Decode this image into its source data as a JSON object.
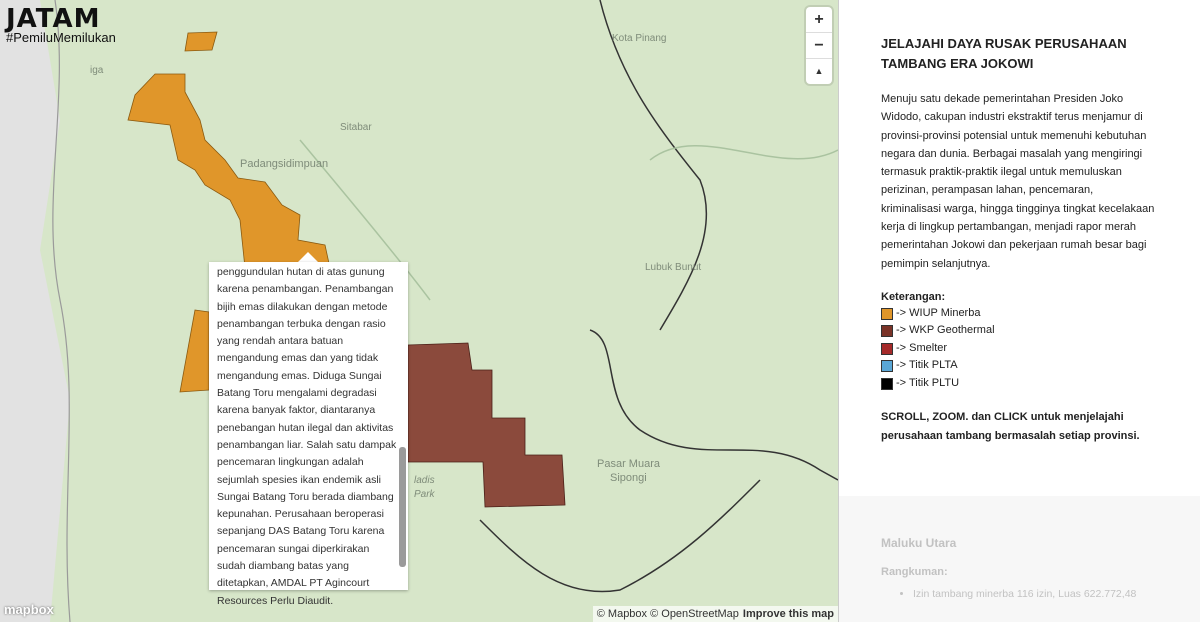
{
  "logo": {
    "title": "JATAM",
    "tagline": "#PemiluMemilukan"
  },
  "map": {
    "places": [
      "Kota Pinang",
      "Sitabar",
      "Padangsidimpuan",
      "Lubuk Bunut",
      "Pasar Muara",
      "Sipongi",
      "ladis",
      "Park",
      "iga"
    ],
    "controls": {
      "zoom_in": "+",
      "zoom_out": "−",
      "reset": "▲"
    },
    "popup": {
      "lines": [
        "penggundulan hutan di atas gunung",
        "karena penambangan. Penambangan",
        "bijih emas dilakukan dengan metode",
        "penambangan terbuka dengan rasio",
        "yang rendah antara batuan",
        "mengandung emas dan yang tidak",
        "mengandung emas. Diduga Sungai",
        "Batang Toru mengalami degradasi",
        "karena banyak faktor, diantaranya",
        "penebangan hutan ilegal dan aktivitas",
        "penambangan liar. Salah satu dampak",
        "pencemaran lingkungan adalah",
        "sejumlah spesies ikan endemik asli",
        "Sungai Batang Toru berada diambang",
        "kepunahan. Perusahaan beroperasi",
        "sepanjang DAS Batang Toru karena",
        "pencemaran sungai diperkirakan",
        "sudah diambang batas yang",
        "ditetapkan, AMDAL PT Agincourt",
        "Resources Perlu Diaudit."
      ]
    },
    "attribution": {
      "text": "© Mapbox © OpenStreetMap",
      "link": "Improve this map",
      "brand": "mapbox"
    }
  },
  "sidebar": {
    "title": "JELAJAHI DAYA RUSAK PERUSAHAAN TAMBANG ERA JOKOWI",
    "intro": "Menuju satu dekade pemerintahan Presiden Joko Widodo, cakupan industri ekstraktif terus menjamur di provinsi-provinsi potensial untuk memenuhi kebutuhan negara dan dunia. Berbagai masalah yang mengiringi termasuk praktik-praktik ilegal untuk memuluskan perizinan, perampasan lahan, pencemaran, kriminalisasi warga, hingga tingginya tingkat kecelakaan kerja di lingkup pertambangan, menjadi rapor merah pemerintahan Jokowi dan pekerjaan rumah besar bagi pemimpin selanjutnya.",
    "legend_title": "Keterangan:",
    "legend": [
      {
        "label": "-> WIUP Minerba",
        "color": "#e0962a"
      },
      {
        "label": "-> WKP Geothermal",
        "color": "#7a3328"
      },
      {
        "label": "-> Smelter",
        "color": "#a52a2a"
      },
      {
        "label": "-> Titik PLTA",
        "color": "#5aa7d6"
      },
      {
        "label": "-> Titik PLTU",
        "color": "#000000"
      }
    ],
    "instruction": "SCROLL, ZOOM. dan CLICK untuk menjelajahi perusahaan tambang bermasalah setiap provinsi.",
    "province": "Maluku Utara",
    "summary_title": "Rangkuman:",
    "summary": [
      "Izin tambang minerba 116 izin, Luas 622.772,48"
    ]
  }
}
